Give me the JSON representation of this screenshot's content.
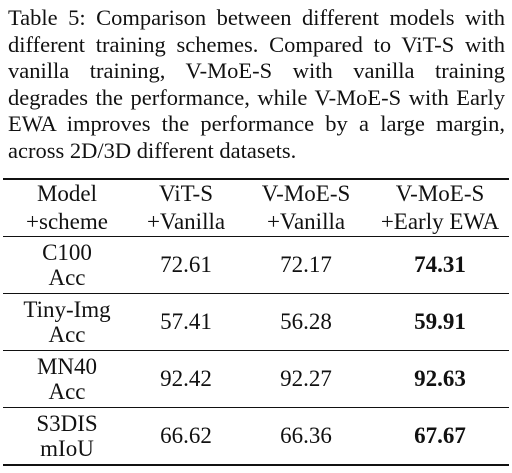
{
  "caption": "Table 5: Comparison between different models with different training schemes. Compared to ViT-S with vanilla training, V-MoE-S with vanilla training degrades the performance, while V-MoE-S with Early EWA improves the performance by a large margin, across 2D/3D different datasets.",
  "header": {
    "row1": [
      "Model",
      "ViT-S",
      "V-MoE-S",
      "V-MoE-S"
    ],
    "row2": [
      "+scheme",
      "+Vanilla",
      "+Vanilla",
      "+Early EWA"
    ]
  },
  "rows": [
    {
      "dataset": "C100",
      "metric": "Acc",
      "vit": "72.61",
      "vmoe_vanilla": "72.17",
      "vmoe_ewa": "74.31"
    },
    {
      "dataset": "Tiny-Img",
      "metric": "Acc",
      "vit": "57.41",
      "vmoe_vanilla": "56.28",
      "vmoe_ewa": "59.91"
    },
    {
      "dataset": "MN40",
      "metric": "Acc",
      "vit": "92.42",
      "vmoe_vanilla": "92.27",
      "vmoe_ewa": "92.63"
    },
    {
      "dataset": "S3DIS",
      "metric": "mIoU",
      "vit": "66.62",
      "vmoe_vanilla": "66.36",
      "vmoe_ewa": "67.67"
    }
  ]
}
